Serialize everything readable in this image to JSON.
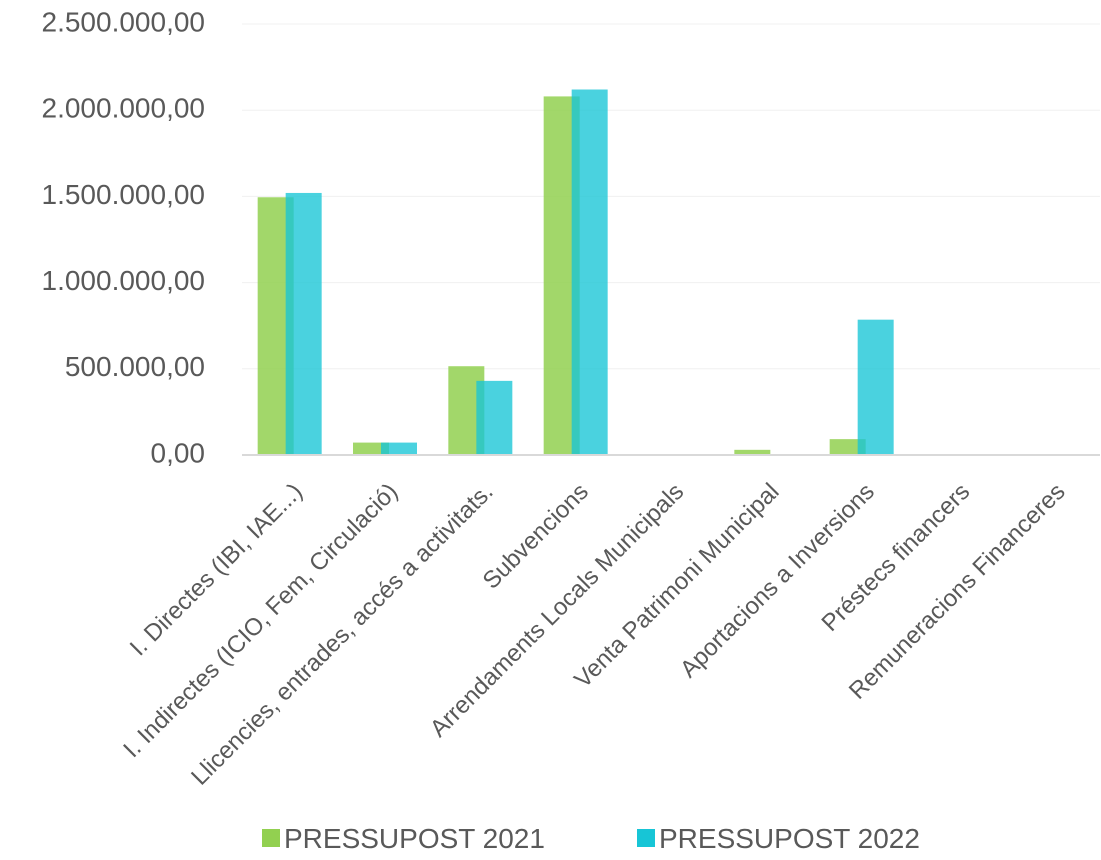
{
  "chart_data": {
    "type": "bar",
    "title": "",
    "xlabel": "",
    "ylabel": "",
    "ylim": [
      0,
      2500000
    ],
    "yticks": [
      {
        "value": 0,
        "label": "0,00"
      },
      {
        "value": 500000,
        "label": "500.000,00"
      },
      {
        "value": 1000000,
        "label": "1.000.000,00"
      },
      {
        "value": 1500000,
        "label": "1.500.000,00"
      },
      {
        "value": 2000000,
        "label": "2.000.000,00"
      },
      {
        "value": 2500000,
        "label": "2.500.000,00"
      }
    ],
    "grid": true,
    "legend_position": "bottom",
    "categories": [
      "I. Directes (IBI, IAE...)",
      "I. Indirectes (ICIO, Fem, Circulació)",
      "Llicencies, entrades, accés a activitats.",
      "Subvencions",
      "Arrendaments Locals Municipals",
      "Venta Patrimoni Municipal",
      "Aportacions a Inversions",
      "Préstecs financers",
      "Remuneracions Financeres"
    ],
    "series": [
      {
        "name": "PRESSUPOST 2021",
        "color": "#92d050",
        "values": [
          1495000,
          72000,
          515000,
          2080000,
          0,
          30000,
          92000,
          0,
          0
        ]
      },
      {
        "name": "PRESSUPOST 2022",
        "color": "#17c5d6",
        "values": [
          1520000,
          72000,
          430000,
          2120000,
          0,
          0,
          785000,
          0,
          0
        ]
      }
    ]
  }
}
